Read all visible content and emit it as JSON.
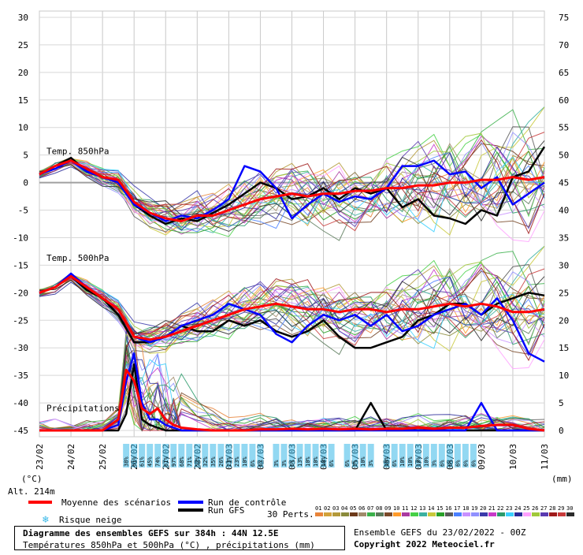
{
  "chart_data": {
    "type": "line",
    "title": "Diagramme des ensembles GEFS sur 384h : 44N 12.5E",
    "subtitle": "Températures 850hPa et 500hPa (°C) , précipitations (mm)",
    "run_info": "Ensemble GEFS du 23/02/2022 - 00Z",
    "copyright": "Copyright 2022 Meteociel.fr",
    "altitude": "Alt. 214m",
    "left_axis_unit": "(°C)",
    "right_axis_unit": "(mm)",
    "left_ticks": [
      "30",
      "25",
      "20",
      "15",
      "10",
      "5",
      "0",
      "-5",
      "-10",
      "-15",
      "-20",
      "-25",
      "-30",
      "-35",
      "-40",
      "-45"
    ],
    "right_ticks": [
      "75",
      "70",
      "65",
      "60",
      "55",
      "50",
      "45",
      "40",
      "35",
      "30",
      "25",
      "20",
      "15",
      "10",
      "5",
      "0"
    ],
    "ylim_left": [
      -45,
      30
    ],
    "ylim_right": [
      0,
      75
    ],
    "x_dates": [
      "23/02",
      "24/02",
      "25/02",
      "26/02",
      "27/02",
      "28/02",
      "01/03",
      "02/03",
      "03/03",
      "04/03",
      "05/03",
      "06/03",
      "07/03",
      "08/03",
      "09/03",
      "10/03",
      "11/03"
    ],
    "panel_labels": {
      "t850": "Temp. 850hPa",
      "t500": "Temp. 500hPa",
      "precip": "Précipitations"
    },
    "series_t850": [
      {
        "name": "Moyenne des scénarios",
        "color": "#ff0000",
        "x": [
          0,
          12,
          24,
          36,
          48,
          60,
          72,
          84,
          96,
          108,
          120,
          132,
          144,
          156,
          168,
          180,
          192,
          204,
          216,
          228,
          240,
          252,
          264,
          276,
          288,
          300,
          312,
          324,
          336,
          348,
          360,
          372,
          384
        ],
        "y": [
          1.5,
          3,
          4,
          2.5,
          1,
          0.5,
          -3.5,
          -5.5,
          -6.5,
          -7,
          -6,
          -6,
          -5,
          -4,
          -3,
          -2.5,
          -2,
          -2.5,
          -2,
          -2,
          -1.5,
          -1.5,
          -1,
          -1,
          -0.5,
          -0.5,
          0,
          0,
          0.5,
          0.5,
          1,
          0.5,
          1
        ]
      },
      {
        "name": "Run de contrôle",
        "color": "#0000ff",
        "x": [
          0,
          12,
          24,
          36,
          48,
          60,
          72,
          84,
          96,
          108,
          120,
          132,
          144,
          156,
          168,
          180,
          192,
          204,
          216,
          228,
          240,
          252,
          264,
          276,
          288,
          300,
          312,
          324,
          336,
          348,
          360,
          372,
          384
        ],
        "y": [
          1.5,
          2.5,
          4,
          2,
          1,
          0,
          -4,
          -5.5,
          -7,
          -6,
          -6.5,
          -5,
          -3,
          3,
          2,
          -1,
          -6.5,
          -4,
          -2,
          -3.5,
          -2.5,
          -3,
          -1,
          3,
          3,
          4,
          1.5,
          2,
          -1,
          1,
          -4,
          -2,
          0
        ]
      },
      {
        "name": "Run GFS",
        "color": "#000000",
        "x": [
          0,
          12,
          24,
          36,
          48,
          60,
          72,
          84,
          96,
          108,
          120,
          132,
          144,
          156,
          168,
          180,
          192,
          204,
          216,
          228,
          240,
          252,
          264,
          276,
          288,
          300,
          312,
          324,
          336,
          348,
          360,
          372,
          384
        ],
        "y": [
          1.5,
          3,
          4.5,
          2,
          1,
          0.5,
          -4,
          -6,
          -7.5,
          -6.5,
          -7,
          -5.5,
          -4,
          -2,
          0,
          -1,
          -3,
          -2.5,
          -1,
          -3,
          -1,
          -2,
          -1,
          -4.5,
          -3,
          -6,
          -6.5,
          -7.5,
          -5,
          -6,
          1,
          2,
          6.5
        ]
      }
    ],
    "series_t500": [
      {
        "name": "Moyenne des scénarios",
        "color": "#ff0000",
        "x": [
          0,
          12,
          24,
          36,
          48,
          60,
          72,
          84,
          96,
          108,
          120,
          132,
          144,
          156,
          168,
          180,
          192,
          204,
          216,
          228,
          240,
          252,
          264,
          276,
          288,
          300,
          312,
          324,
          336,
          348,
          360,
          372,
          384
        ],
        "y": [
          -20,
          -19,
          -17,
          -19,
          -21,
          -23,
          -28,
          -28.5,
          -28,
          -27,
          -26,
          -25,
          -24,
          -23,
          -22.5,
          -22,
          -22.5,
          -23,
          -23,
          -23.5,
          -23,
          -23,
          -23.5,
          -23,
          -23,
          -22.5,
          -22,
          -22.5,
          -22,
          -22.5,
          -23.5,
          -23.5,
          -23
        ]
      },
      {
        "name": "Run de contrôle",
        "color": "#0000ff",
        "x": [
          0,
          12,
          24,
          36,
          48,
          60,
          72,
          84,
          96,
          108,
          120,
          132,
          144,
          156,
          168,
          180,
          192,
          204,
          216,
          228,
          240,
          252,
          264,
          276,
          288,
          300,
          312,
          324,
          336,
          348,
          360,
          372,
          384
        ],
        "y": [
          -20,
          -19,
          -16.5,
          -19,
          -21,
          -23,
          -28,
          -29,
          -28,
          -26,
          -25,
          -24,
          -22,
          -23,
          -24,
          -27.5,
          -29,
          -26,
          -24,
          -25,
          -24,
          -26,
          -24,
          -27,
          -26,
          -24,
          -23,
          -22,
          -24,
          -21,
          -25,
          -31,
          -32.5
        ]
      },
      {
        "name": "Run GFS",
        "color": "#000000",
        "x": [
          0,
          12,
          24,
          36,
          48,
          60,
          72,
          84,
          96,
          108,
          120,
          132,
          144,
          156,
          168,
          180,
          192,
          204,
          216,
          228,
          240,
          252,
          264,
          276,
          288,
          300,
          312,
          324,
          336,
          348,
          360,
          372,
          384
        ],
        "y": [
          -20,
          -19,
          -17,
          -19.5,
          -21,
          -24,
          -29,
          -29,
          -28,
          -26,
          -27,
          -27,
          -25,
          -26,
          -25,
          -27,
          -28,
          -27,
          -25,
          -28,
          -30,
          -30,
          -29,
          -28,
          -25,
          -24,
          -22,
          -22,
          -24,
          -22,
          -21,
          -20,
          -20.5
        ]
      }
    ],
    "series_precip": [
      {
        "name": "Moyenne des scénarios",
        "color": "#ff0000",
        "x": [
          0,
          12,
          24,
          36,
          48,
          60,
          66,
          72,
          78,
          84,
          90,
          96,
          102,
          108,
          120,
          132,
          144,
          156,
          168,
          180,
          192,
          204,
          216,
          228,
          240,
          252,
          264,
          276,
          288,
          300,
          312,
          324,
          336,
          348,
          360,
          372,
          384
        ],
        "y": [
          0,
          0,
          0,
          0,
          0,
          2,
          11,
          9,
          4,
          3,
          4,
          2,
          1,
          0.5,
          0.2,
          0,
          0,
          0,
          0.2,
          0.2,
          0.3,
          0.2,
          0.3,
          0.2,
          0.3,
          0.2,
          0.3,
          0.3,
          0.5,
          0.3,
          0.5,
          0.5,
          0.8,
          1,
          1,
          0.3,
          0
        ]
      },
      {
        "name": "Run de contrôle",
        "color": "#0000ff",
        "x": [
          0,
          12,
          24,
          36,
          48,
          60,
          66,
          72,
          78,
          84,
          90,
          96,
          102,
          108,
          120,
          132,
          144,
          156,
          168,
          180,
          192,
          204,
          216,
          228,
          240,
          252,
          264,
          276,
          288,
          300,
          312,
          324,
          336,
          348,
          360,
          372,
          384
        ],
        "y": [
          0,
          0,
          0,
          0,
          0,
          1,
          9,
          14,
          5,
          2,
          2,
          1,
          0.5,
          0,
          0,
          0,
          0,
          0,
          0,
          0,
          0,
          0,
          0,
          0,
          0,
          0,
          0,
          0,
          0,
          0,
          0,
          0,
          5,
          0,
          0,
          0,
          0
        ]
      },
      {
        "name": "Run GFS",
        "color": "#000000",
        "x": [
          0,
          12,
          24,
          36,
          48,
          60,
          66,
          72,
          78,
          84,
          90,
          96,
          102,
          108,
          120,
          132,
          144,
          156,
          168,
          180,
          192,
          204,
          216,
          228,
          240,
          252,
          264,
          276,
          288,
          300,
          312,
          324,
          336,
          348,
          360,
          372,
          384
        ],
        "y": [
          0,
          0,
          0,
          0,
          0,
          0,
          3,
          12,
          2,
          1,
          0.5,
          0,
          0,
          0,
          0,
          0,
          0,
          0,
          0,
          0,
          0,
          0,
          0,
          0,
          0,
          5,
          0,
          0,
          0,
          0,
          0,
          0,
          0,
          0,
          0,
          0,
          0
        ]
      }
    ],
    "snow_risk_labels": [
      "38%",
      "61%",
      "61%",
      "45%",
      "74%",
      "81%",
      "97%",
      "68%",
      "71%",
      "52%",
      "32%",
      "35%",
      "26%",
      "23%",
      "23%",
      "10%",
      "6%",
      "6%",
      "3%",
      "3%",
      "6%",
      "13%",
      "10%",
      "10%",
      "10%",
      "6%",
      "6%",
      "3%",
      "10%",
      "3%",
      "10%",
      "6%",
      "10%",
      "10%",
      "10%",
      "10%",
      "3%",
      "6%",
      "6%",
      "6%",
      "6%",
      "6%"
    ],
    "member_palette_labels": [
      "01",
      "02",
      "03",
      "04",
      "05",
      "06",
      "07",
      "08",
      "09",
      "10",
      "11",
      "12",
      "13",
      "14",
      "15",
      "16",
      "17",
      "18",
      "19",
      "20",
      "21",
      "22",
      "23",
      "24",
      "25",
      "26",
      "27",
      "28",
      "29",
      "30"
    ],
    "member_palette_colors": [
      "#e8843a",
      "#d2a23a",
      "#b49a3a",
      "#8a8a3a",
      "#6d3a1a",
      "#a08a6a",
      "#3ab04a",
      "#5a7a5a",
      "#7a4a2a",
      "#ff9b2a",
      "#aa3aa0",
      "#46d046",
      "#3ab0a0",
      "#c8c83a",
      "#28a028",
      "#5a5a5a",
      "#4a80ff",
      "#c890ff",
      "#9090ff",
      "#3a3aaa",
      "#c83ac8",
      "#2a9a6a",
      "#3ad0ff",
      "#2a2a9a",
      "#ffa0ff",
      "#a0c83a",
      "#5a3ab0",
      "#a01a1a",
      "#c83a3a",
      "#2a2a2a"
    ],
    "grid": true,
    "legend_position": "bottom-left"
  },
  "legend": {
    "mean": "Moyenne des scénarios",
    "control": "Run de contrôle",
    "gfs": "Run GFS",
    "snow": "Risque neige",
    "perts": "30 Perts.",
    "mean_color": "#ff0000",
    "control_color": "#0000ff",
    "gfs_color": "#000000",
    "snow_color": "#38b8e8"
  }
}
